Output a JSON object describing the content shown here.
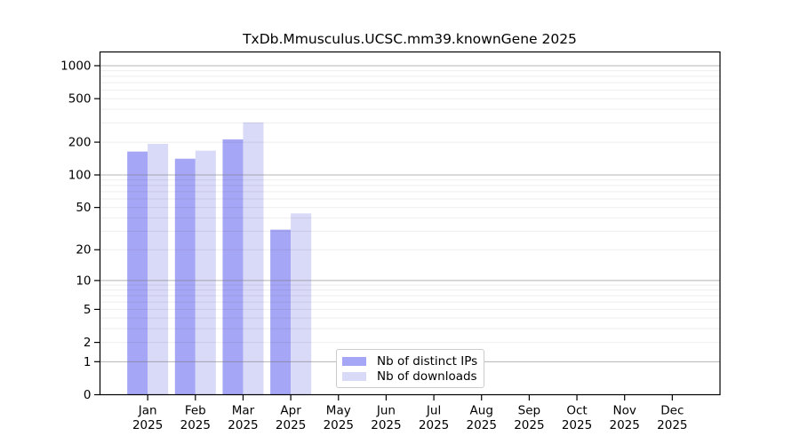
{
  "chart_data": {
    "type": "bar",
    "title": "TxDb.Mmusculus.UCSC.mm39.knownGene 2025",
    "categories": [
      "Jan",
      "Feb",
      "Mar",
      "Apr",
      "May",
      "Jun",
      "Jul",
      "Aug",
      "Sep",
      "Oct",
      "Nov",
      "Dec"
    ],
    "category_year": "2025",
    "series": [
      {
        "name": "Nb of distinct IPs",
        "color": "#a6a6f6",
        "values": [
          164,
          141,
          212,
          31,
          null,
          null,
          null,
          null,
          null,
          null,
          null,
          null
        ]
      },
      {
        "name": "Nb of downloads",
        "color": "#d9d9f8",
        "values": [
          193,
          167,
          303,
          44,
          null,
          null,
          null,
          null,
          null,
          null,
          null,
          null
        ]
      }
    ],
    "yscale": "log1p",
    "ylim": [
      0,
      1335
    ],
    "yticks": [
      0,
      1,
      2,
      5,
      10,
      20,
      50,
      100,
      200,
      500,
      1000
    ],
    "grid": {
      "shown": true,
      "major_lines_at": [
        1,
        10,
        100,
        1000
      ],
      "minor_color": "#ececec",
      "major_color": "#c0c0c0"
    },
    "legend": {
      "position": "bottom-center",
      "border_color": "#cccccc",
      "background": "#ffffff"
    },
    "axis_color": "#000000",
    "background": "#ffffff"
  }
}
